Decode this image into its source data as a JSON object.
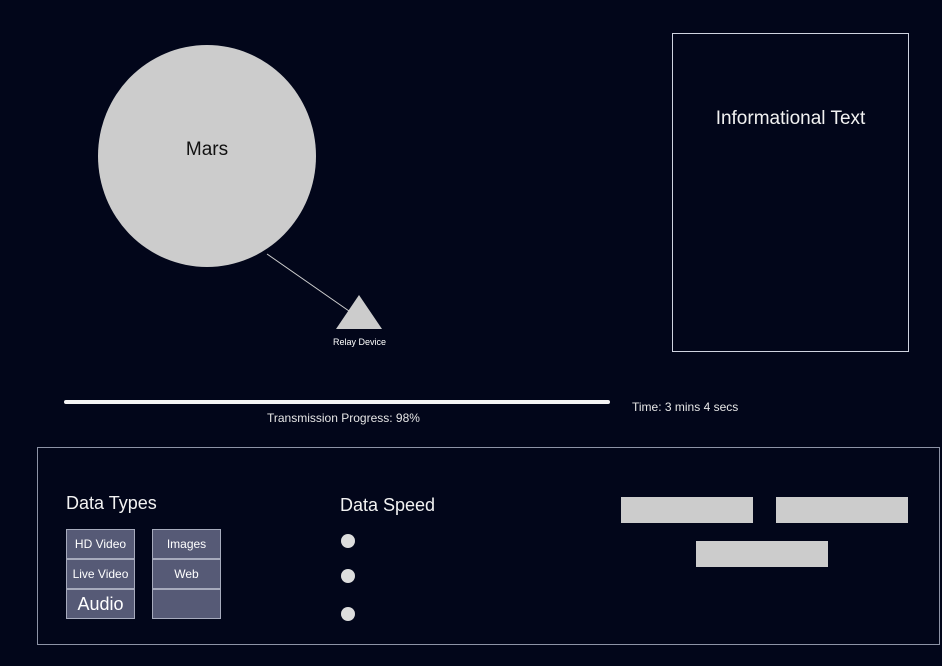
{
  "scene": {
    "planet_label": "Mars",
    "relay_label": "Relay Device"
  },
  "info_panel": {
    "title": "Informational Text"
  },
  "transmission": {
    "progress_percent": 98,
    "progress_text": "Transmission Progress: 98%",
    "time_text": "Time: 3 mins 4 secs"
  },
  "controls": {
    "data_types_heading": "Data Types",
    "data_types_left": [
      "HD Video",
      "Live Video",
      "Audio"
    ],
    "data_types_right": [
      "Images",
      "Web",
      ""
    ],
    "data_speed_heading": "Data Speed",
    "speed_options": [
      "",
      "",
      ""
    ]
  },
  "colors": {
    "background": "#02061a",
    "planet": "#cccccc",
    "panel_border": "#8d93a6",
    "button_fill": "#565a76",
    "placeholder_button": "#cccccc"
  }
}
